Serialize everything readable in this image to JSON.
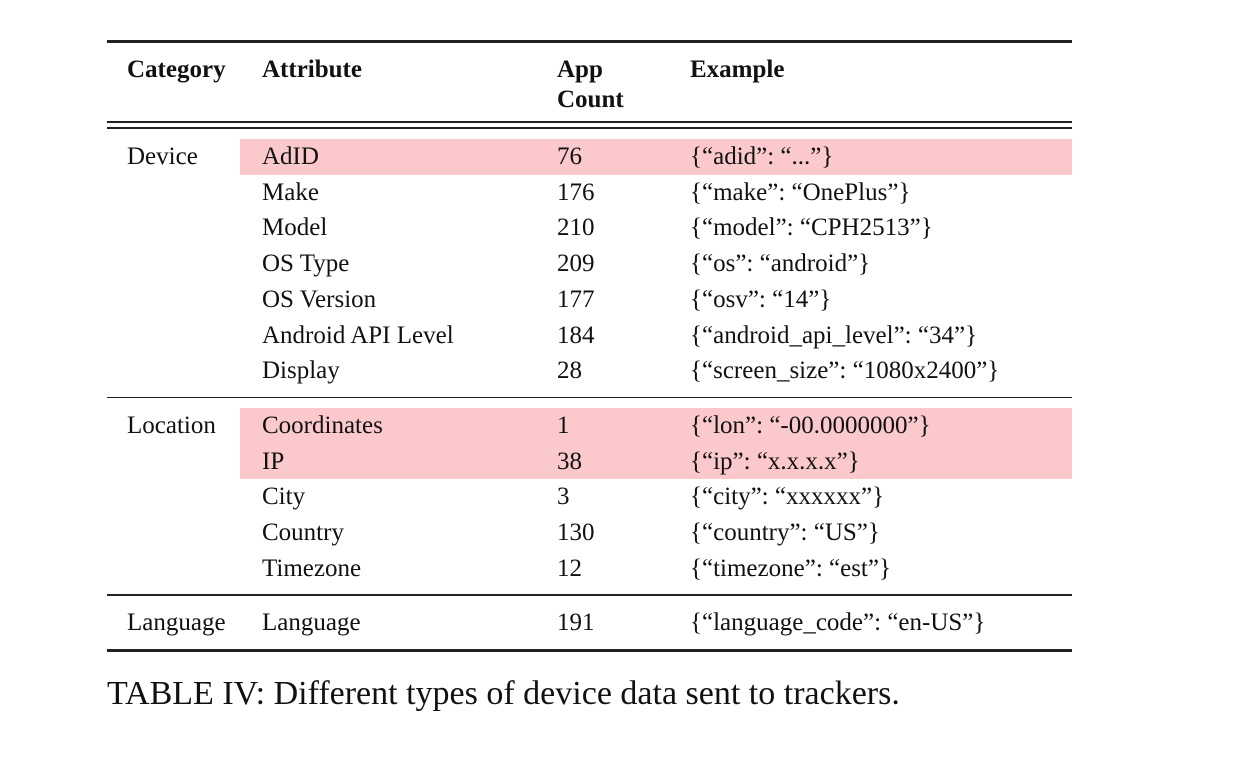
{
  "table": {
    "columns": [
      "Category",
      "Attribute",
      "App Count",
      "Example"
    ],
    "groups": [
      {
        "category": "Device",
        "rows": [
          {
            "attribute": "AdID",
            "count": 76,
            "example": "{“adid”: “...”}",
            "highlighted": true
          },
          {
            "attribute": "Make",
            "count": 176,
            "example": "{“make”: “OnePlus”}",
            "highlighted": false
          },
          {
            "attribute": "Model",
            "count": 210,
            "example": "{“model”: “CPH2513”}",
            "highlighted": false
          },
          {
            "attribute": "OS Type",
            "count": 209,
            "example": "{“os”: “android”}",
            "highlighted": false
          },
          {
            "attribute": "OS Version",
            "count": 177,
            "example": "{“osv”: “14”}",
            "highlighted": false
          },
          {
            "attribute": "Android API Level",
            "count": 184,
            "example": "{“android_api_level”: “34”}",
            "highlighted": false
          },
          {
            "attribute": "Display",
            "count": 28,
            "example": "{“screen_size”: “1080x2400”}",
            "highlighted": false
          }
        ]
      },
      {
        "category": "Location",
        "rows": [
          {
            "attribute": "Coordinates",
            "count": 1,
            "example": "{“lon”: “-00.0000000”}",
            "highlighted": true
          },
          {
            "attribute": "IP",
            "count": 38,
            "example": "{“ip”: “x.x.x.x”}",
            "highlighted": true
          },
          {
            "attribute": "City",
            "count": 3,
            "example": "{“city”: “xxxxxx”}",
            "highlighted": false
          },
          {
            "attribute": "Country",
            "count": 130,
            "example": "{“country”: “US”}",
            "highlighted": false
          },
          {
            "attribute": "Timezone",
            "count": 12,
            "example": "{“timezone”: “est”}",
            "highlighted": false
          }
        ]
      },
      {
        "category": "Language",
        "rows": [
          {
            "attribute": "Language",
            "count": 191,
            "example": "{“language_code”: “en-US”}",
            "highlighted": false
          }
        ]
      }
    ],
    "caption": "TABLE IV: Different types of device data sent to trackers."
  }
}
